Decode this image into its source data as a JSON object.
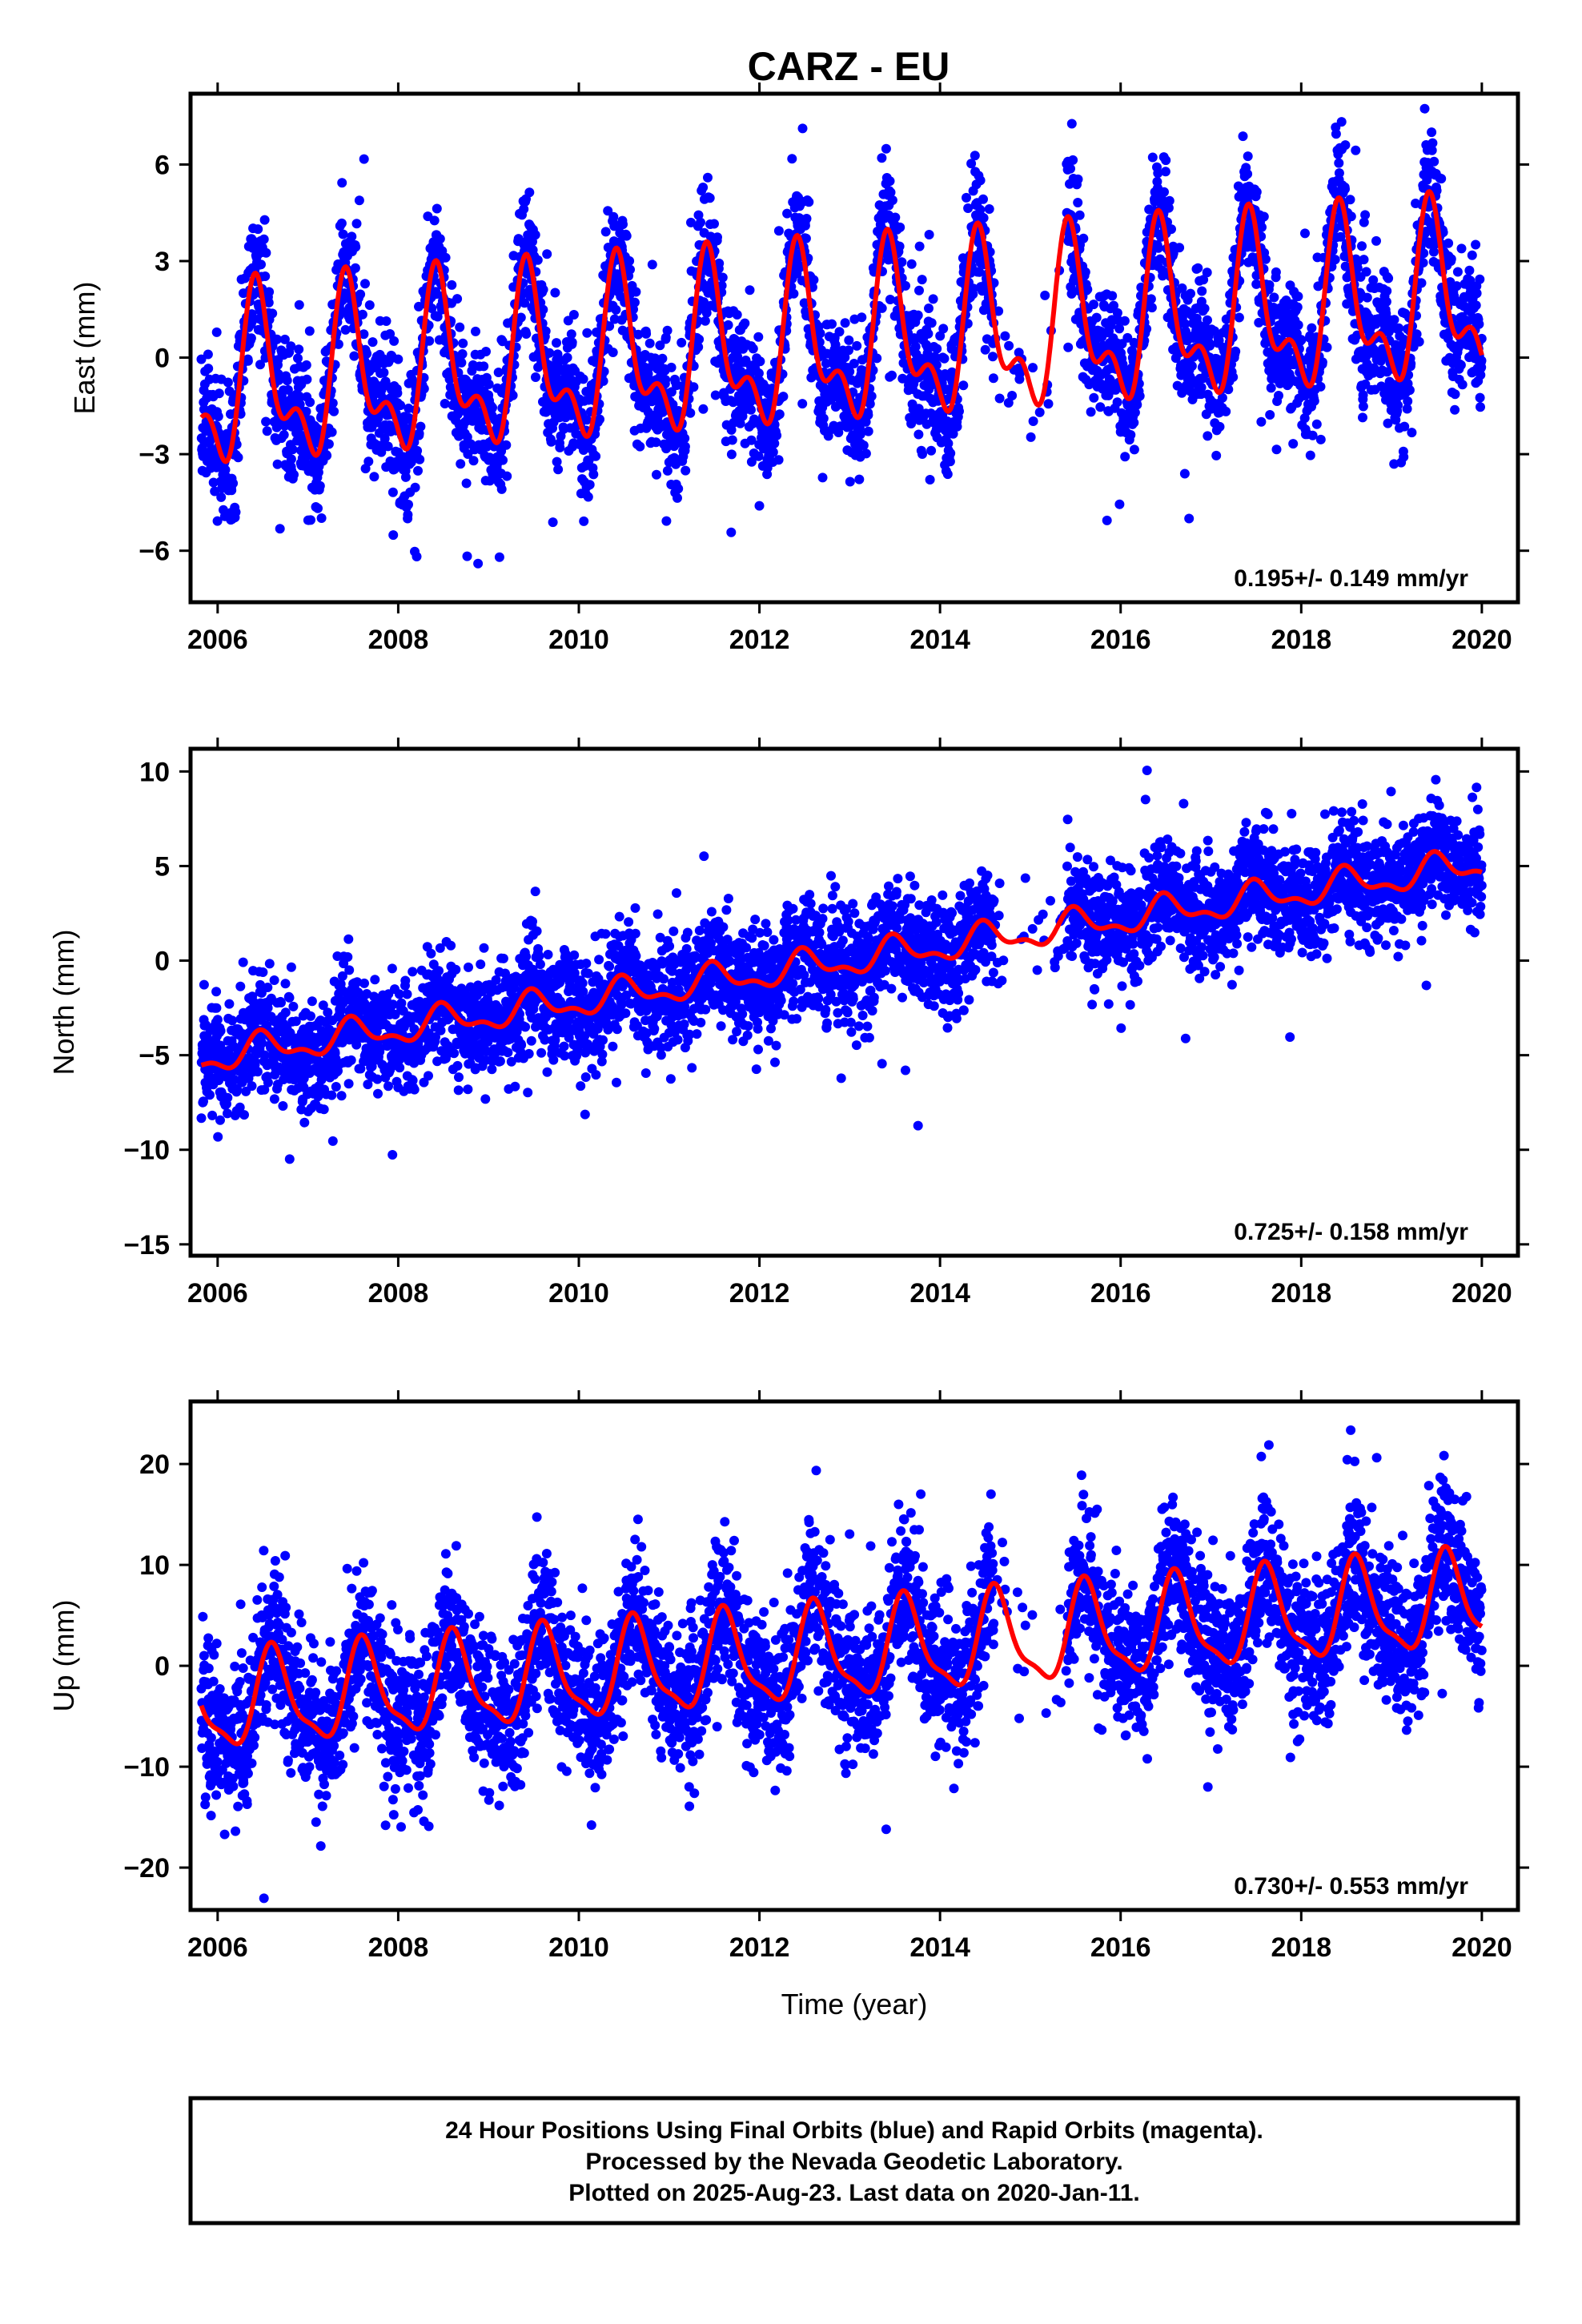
{
  "title": "CARZ - EU",
  "xlabel": "Time (year)",
  "footer": [
    "24 Hour Positions Using Final Orbits (blue) and Rapid Orbits (magenta).",
    "Processed by the Nevada Geodetic Laboratory.",
    "Plotted on 2025-Aug-23. Last data on 2020-Jan-11."
  ],
  "colors": {
    "points": "#0000ff",
    "fit": "#ff0000",
    "axes": "#000000"
  },
  "chart_data": [
    {
      "type": "scatter",
      "ylabel": "East (mm)",
      "rate_label": "0.195+/- 0.149 mm/yr",
      "xlim": [
        2005.7,
        2020.4
      ],
      "ylim": [
        -7.6,
        8.2
      ],
      "xticks": [
        "2006",
        "2008",
        "2010",
        "2012",
        "2014",
        "2016",
        "2018",
        "2020"
      ],
      "yticks": [
        "−6",
        "−3",
        "0",
        "3",
        "6"
      ],
      "ytick_values": [
        -6,
        -3,
        0,
        3,
        6
      ],
      "model": {
        "intercept": -0.95,
        "slope": 0.195,
        "t0": 2005.8,
        "amplitude_start": 2.9,
        "amplitude_end": 2.9,
        "peak_phase": 0.45,
        "second_harmonic": 0.55,
        "scatter_sd": 1.0,
        "outlier_sd": 2.4
      },
      "data_span": [
        2005.82,
        2020.0
      ],
      "gap": [
        2014.6,
        2015.4
      ]
    },
    {
      "type": "scatter",
      "ylabel": "North (mm)",
      "rate_label": "0.725+/- 0.158 mm/yr",
      "xlim": [
        2005.7,
        2020.4
      ],
      "ylim": [
        -15.6,
        11.2
      ],
      "xticks": [
        "2006",
        "2008",
        "2010",
        "2012",
        "2014",
        "2016",
        "2018",
        "2020"
      ],
      "yticks": [
        "−15",
        "−10",
        "−5",
        "0",
        "5",
        "10"
      ],
      "ytick_values": [
        -15,
        -10,
        -5,
        0,
        5,
        10
      ],
      "model": {
        "intercept": -5.2,
        "slope": 0.725,
        "t0": 2005.8,
        "amplitude_start": 0.9,
        "amplitude_end": 0.9,
        "peak_phase": 0.5,
        "second_harmonic": 0.5,
        "scatter_sd": 1.4,
        "outlier_sd": 3.0
      },
      "data_span": [
        2005.82,
        2020.0
      ],
      "gap": [
        2014.6,
        2015.4
      ]
    },
    {
      "type": "scatter",
      "ylabel": "Up (mm)",
      "rate_label": "0.730+/- 0.553 mm/yr",
      "xlim": [
        2005.7,
        2020.4
      ],
      "ylim": [
        -24.2,
        26.2
      ],
      "xticks": [
        "2006",
        "2008",
        "2010",
        "2012",
        "2014",
        "2016",
        "2018",
        "2020"
      ],
      "yticks": [
        "−20",
        "−10",
        "0",
        "10",
        "20"
      ],
      "ytick_values": [
        -20,
        -10,
        0,
        10,
        20
      ],
      "model": {
        "intercept": -4.0,
        "slope": 0.73,
        "t0": 2005.8,
        "amplitude_start": 5.2,
        "amplitude_end": 5.2,
        "peak_phase": 0.62,
        "second_harmonic": 0.3,
        "scatter_sd": 3.6,
        "outlier_sd": 7.5
      },
      "data_span": [
        2005.82,
        2020.0
      ],
      "gap": [
        2014.6,
        2015.4
      ]
    }
  ]
}
